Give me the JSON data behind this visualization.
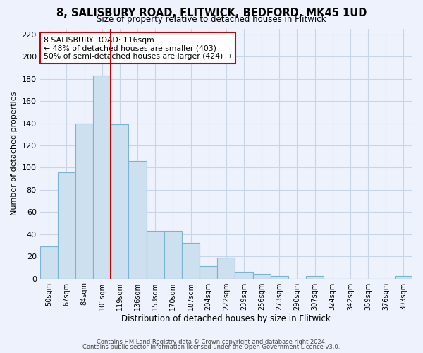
{
  "title": "8, SALISBURY ROAD, FLITWICK, BEDFORD, MK45 1UD",
  "subtitle": "Size of property relative to detached houses in Flitwick",
  "xlabel": "Distribution of detached houses by size in Flitwick",
  "ylabel": "Number of detached properties",
  "bar_color": "#cce0f0",
  "bar_edge_color": "#7ab4d0",
  "categories": [
    "50sqm",
    "67sqm",
    "84sqm",
    "101sqm",
    "119sqm",
    "136sqm",
    "153sqm",
    "170sqm",
    "187sqm",
    "204sqm",
    "222sqm",
    "239sqm",
    "256sqm",
    "273sqm",
    "290sqm",
    "307sqm",
    "324sqm",
    "342sqm",
    "359sqm",
    "376sqm",
    "393sqm"
  ],
  "values": [
    29,
    96,
    140,
    183,
    139,
    106,
    43,
    43,
    32,
    11,
    19,
    6,
    4,
    2,
    0,
    2,
    0,
    0,
    0,
    0,
    2
  ],
  "vline_color": "#cc0000",
  "annotation_text": "8 SALISBURY ROAD: 116sqm\n← 48% of detached houses are smaller (403)\n50% of semi-detached houses are larger (424) →",
  "annotation_box_color": "white",
  "annotation_box_edge": "#cc0000",
  "ylim": [
    0,
    225
  ],
  "yticks": [
    0,
    20,
    40,
    60,
    80,
    100,
    120,
    140,
    160,
    180,
    200,
    220
  ],
  "footer1": "Contains HM Land Registry data © Crown copyright and database right 2024.",
  "footer2": "Contains public sector information licensed under the Open Government Licence v3.0.",
  "background_color": "#eef2fc",
  "grid_color": "#c8d4e8"
}
